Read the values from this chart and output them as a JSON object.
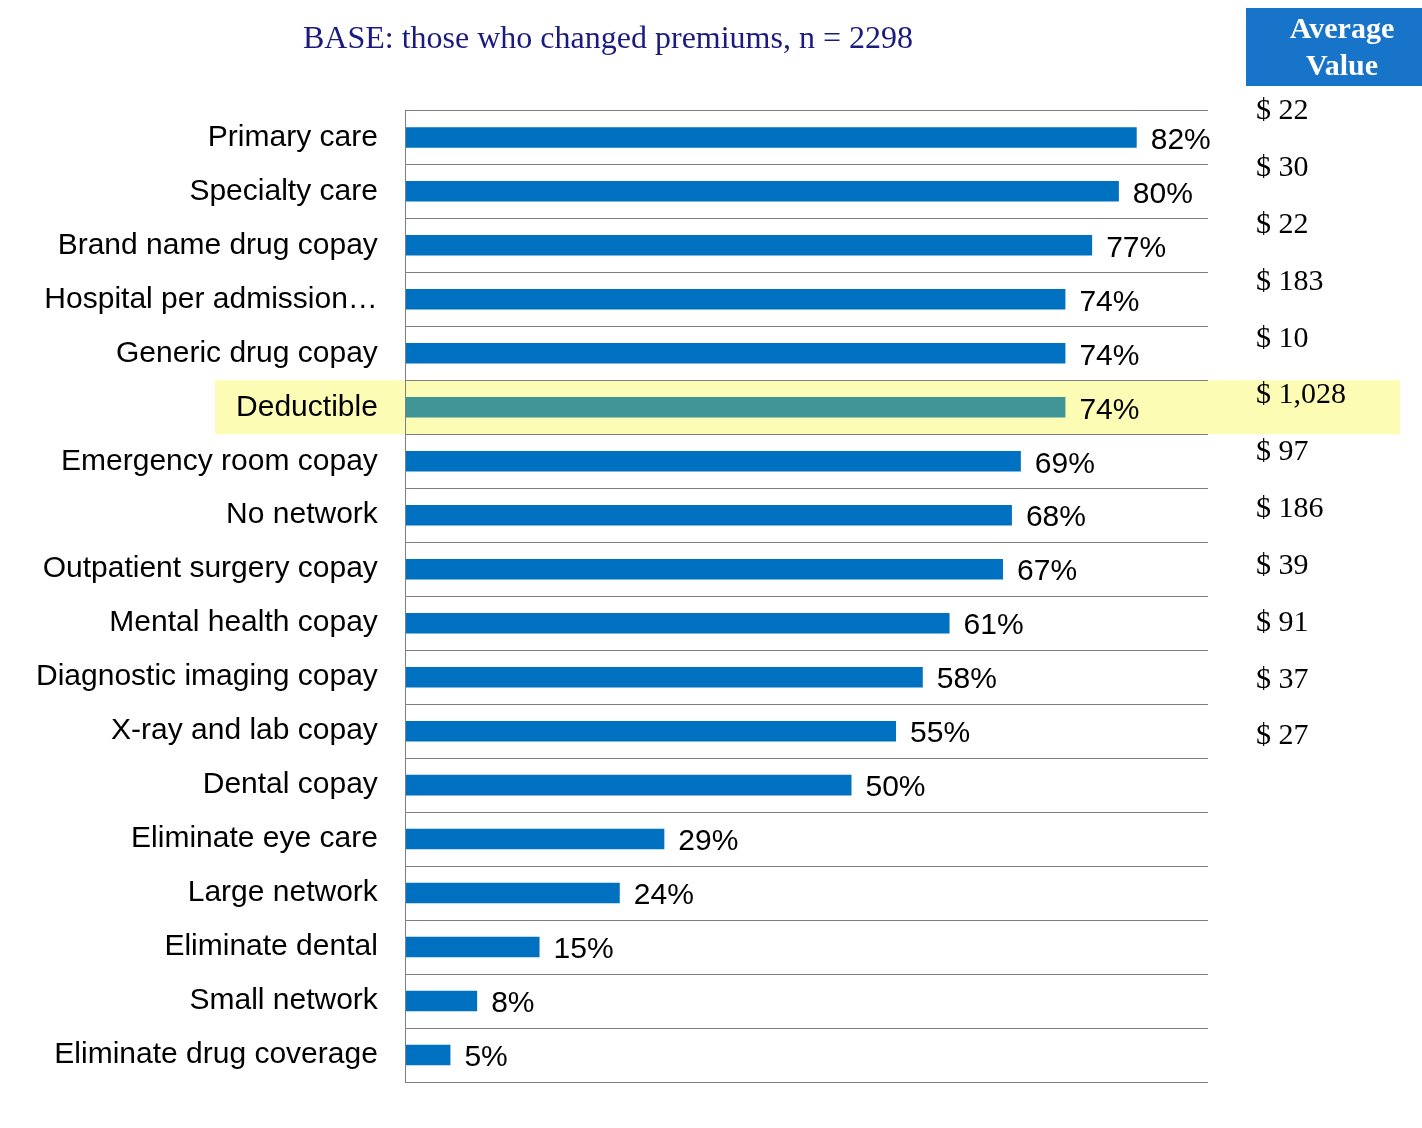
{
  "chart_data": {
    "type": "bar",
    "orientation": "horizontal",
    "title": "BASE: those who changed premiums, n = 2298",
    "categories": [
      "Primary care",
      "Specialty care",
      "Brand name drug copay",
      "Hospital per admission…",
      "Generic drug copay",
      "Deductible",
      "Emergency room copay",
      "No network",
      "Outpatient surgery copay",
      "Mental health copay",
      "Diagnostic imaging copay",
      "X-ray and lab copay",
      "Dental copay",
      "Eliminate eye care",
      "Large network",
      "Eliminate dental",
      "Small network",
      "Eliminate drug coverage"
    ],
    "values": [
      82,
      80,
      77,
      74,
      74,
      74,
      69,
      68,
      67,
      61,
      58,
      55,
      50,
      29,
      24,
      15,
      8,
      5
    ],
    "value_labels": [
      "82%",
      "80%",
      "77%",
      "74%",
      "74%",
      "74%",
      "69%",
      "68%",
      "67%",
      "61%",
      "58%",
      "55%",
      "50%",
      "29%",
      "24%",
      "15%",
      "8%",
      "5%"
    ],
    "colors": [
      "#0070c0",
      "#0070c0",
      "#0070c0",
      "#0070c0",
      "#0070c0",
      "#3f9595",
      "#0070c0",
      "#0070c0",
      "#0070c0",
      "#0070c0",
      "#0070c0",
      "#0070c0",
      "#0070c0",
      "#0070c0",
      "#0070c0",
      "#0070c0",
      "#0070c0",
      "#0070c0"
    ],
    "xlim": [
      0,
      90
    ],
    "bands": [
      {
        "axis": "y",
        "from": "Deductible",
        "to": "Deductible",
        "color": "#fcfcb4"
      }
    ],
    "annotations": [
      "Average Value",
      "$ 22",
      "$ 30",
      "$ 22",
      "$ 183",
      "$ 10",
      "$ 1,028",
      "$ 97",
      "$ 186",
      "$ 39",
      "$ 91",
      "$ 37",
      "$ 27"
    ],
    "grid": "y",
    "tick_labels": "y",
    "legend": false
  }
}
